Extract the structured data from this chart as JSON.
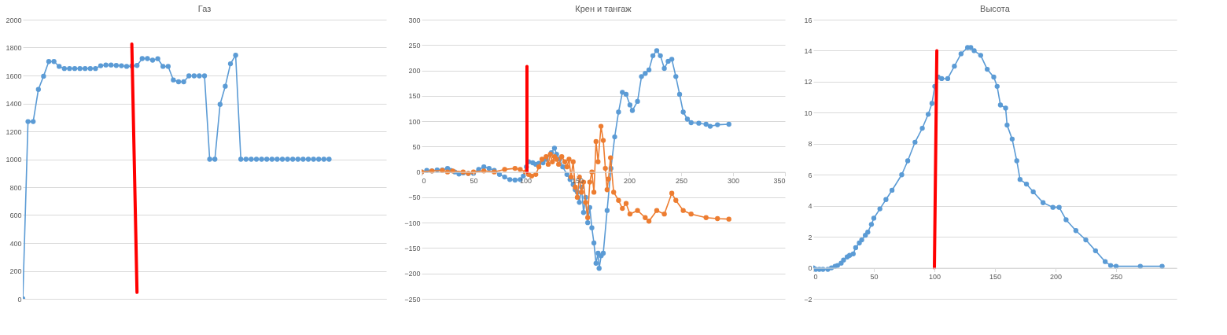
{
  "chart_data": [
    {
      "type": "line",
      "title": "Газ",
      "categories": [
        null,
        null,
        null,
        null,
        null,
        null,
        null,
        null,
        null,
        null,
        null,
        null,
        null,
        null,
        null,
        null,
        null,
        null,
        null,
        null,
        null,
        null,
        null,
        null,
        null,
        null,
        null,
        null,
        null,
        null,
        null,
        null,
        null,
        null,
        null,
        null,
        null,
        null,
        null,
        null,
        null,
        null,
        null,
        null,
        null,
        null,
        null,
        null,
        null,
        null,
        null,
        null,
        null,
        null,
        null,
        null,
        null,
        null,
        null,
        null,
        null,
        null,
        null,
        null,
        null,
        null,
        null,
        null,
        null,
        null,
        null
      ],
      "ylim": [
        0,
        2000
      ],
      "yticks": [
        0,
        200,
        400,
        600,
        800,
        1000,
        1200,
        1400,
        1600,
        1800,
        2000
      ],
      "tick_labels": "y",
      "grid": "y",
      "marker": "circle",
      "series": [
        {
          "color": "#5b9bd5",
          "values": [
            0,
            1270,
            1270,
            1500,
            1595,
            1700,
            1700,
            1665,
            1650,
            1650,
            1650,
            1650,
            1650,
            1650,
            1650,
            1670,
            1675,
            1675,
            1672,
            1670,
            1665,
            1668,
            1672,
            1721,
            1721,
            1710,
            1720,
            1665,
            1665,
            1568,
            1555,
            1555,
            1597,
            1597,
            1597,
            1597,
            1000,
            1000,
            1393,
            1523,
            1684,
            1745,
            1000,
            1000,
            1000,
            1000,
            1000,
            1000,
            1000,
            1000,
            1000,
            1000,
            1000,
            1000,
            1000,
            1000,
            1000,
            1000,
            1000,
            1000,
            null,
            null,
            null,
            null,
            null,
            null,
            null,
            null,
            null,
            null,
            null
          ]
        },
        {
          "color": "#ff0000",
          "marker": "none",
          "values": [
            null,
            null,
            null,
            null,
            null,
            null,
            null,
            null,
            null,
            null,
            null,
            null,
            null,
            null,
            null,
            null,
            null,
            null,
            null,
            null,
            null,
            1826,
            46,
            null,
            null,
            null,
            null,
            null,
            null,
            null,
            null,
            null,
            null,
            null,
            null,
            null,
            null,
            null,
            null,
            null,
            null,
            null,
            null,
            null,
            null,
            null,
            null,
            null,
            null,
            null,
            null,
            null,
            null,
            null,
            null,
            null,
            null,
            null,
            null,
            null,
            null,
            null,
            null,
            null,
            null,
            null,
            null,
            null,
            null,
            null,
            null
          ]
        }
      ]
    },
    {
      "type": "line",
      "title": "Крен и тангаж",
      "xlim": [
        0,
        350
      ],
      "xticks": [
        0,
        50,
        100,
        150,
        200,
        250,
        300,
        350
      ],
      "ylim": [
        -250,
        300
      ],
      "yticks": [
        -250,
        -200,
        -150,
        -100,
        -50,
        0,
        50,
        100,
        150,
        200,
        250,
        300
      ],
      "grid": "y",
      "marker": "circle",
      "series": [
        {
          "color": "#5b9bd5",
          "x": [
            0,
            5,
            10,
            15,
            20,
            25,
            28,
            32,
            36,
            40,
            45,
            50,
            55,
            60,
            65,
            70,
            75,
            80,
            85,
            90,
            95,
            98,
            101,
            103,
            107,
            110,
            113,
            117,
            120,
            125,
            128,
            130,
            133,
            136,
            140,
            143,
            146,
            148,
            150,
            152,
            154,
            156,
            158,
            160,
            162,
            164,
            166,
            168,
            170,
            171,
            173,
            175,
            178.7,
            182.4,
            186,
            189.7,
            193.4,
            197,
            200.7,
            203,
            208,
            211.8,
            215.4,
            219,
            222.8,
            226.5,
            230,
            233.8,
            237.5,
            241,
            244.9,
            248.5,
            252,
            256,
            259.6,
            267,
            274,
            278,
            285,
            296
          ],
          "values": [
            0,
            3,
            2,
            4,
            4,
            7,
            3,
            0,
            -4,
            -2,
            -3,
            -3,
            5,
            10,
            7,
            3,
            -5,
            -10,
            -15,
            -16,
            -15,
            -8,
            10,
            20,
            18,
            15,
            17,
            18,
            25,
            38,
            47,
            35,
            25,
            10,
            -5,
            -15,
            -25,
            -35,
            -40,
            -60,
            -30,
            -80,
            -50,
            -100,
            -70,
            -110,
            -140,
            -180,
            -160,
            -190,
            -165,
            -160,
            -76,
            7,
            69,
            118,
            157,
            153,
            132,
            121,
            139,
            188,
            194,
            201,
            229,
            239,
            229,
            204,
            218,
            222,
            188,
            153,
            118,
            104,
            97,
            96,
            94,
            90,
            93,
            94
          ]
        },
        {
          "color": "#ed7d31",
          "x": [
            0,
            10,
            20,
            25,
            30,
            40,
            45,
            50,
            60,
            70,
            80,
            90,
            95,
            100,
            103,
            106,
            110,
            113,
            116,
            120,
            122,
            124,
            126,
            128,
            130,
            132,
            135,
            138,
            140,
            142,
            144,
            146,
            148,
            150,
            152,
            154,
            156,
            158,
            160,
            162,
            164,
            166,
            168,
            170,
            172.8,
            175,
            177,
            178.7,
            180,
            182,
            185,
            189.7,
            193.4,
            197,
            200.7,
            208,
            215.4,
            219,
            226.5,
            233.8,
            241,
            244.9,
            252,
            259.6,
            274,
            285,
            296
          ],
          "values": [
            0,
            2,
            3,
            0,
            2,
            0,
            -3,
            0,
            2,
            0,
            5,
            7,
            5,
            0,
            -5,
            -8,
            -5,
            10,
            25,
            30,
            15,
            35,
            20,
            30,
            25,
            15,
            30,
            20,
            10,
            25,
            -10,
            20,
            -30,
            -50,
            -10,
            -40,
            -20,
            -60,
            -90,
            -20,
            0,
            -40,
            60,
            20,
            90,
            62,
            7,
            -35,
            -14,
            28,
            -40,
            -56,
            -72,
            -62,
            -83,
            -76,
            -90,
            -97,
            -76,
            -83,
            -42,
            -56,
            -76,
            -83,
            -90,
            -92,
            -93
          ]
        },
        {
          "color": "#ff0000",
          "marker": "none",
          "x": [
            101.5,
            101.5
          ],
          "values": [
            208,
            0
          ]
        }
      ]
    },
    {
      "type": "line",
      "title": "Высота",
      "xlim": [
        0,
        300
      ],
      "xticks": [
        0,
        50,
        100,
        150,
        200,
        250
      ],
      "ylim": [
        -2,
        16
      ],
      "yticks": [
        -2,
        0,
        2,
        4,
        6,
        8,
        10,
        12,
        14,
        16
      ],
      "grid": "y",
      "marker": "circle",
      "series": [
        {
          "color": "#5b9bd5",
          "x": [
            0,
            2,
            5,
            8,
            12,
            15,
            18,
            20,
            23,
            25,
            28,
            30,
            33,
            35,
            38,
            40,
            43,
            45,
            48,
            50,
            55,
            60,
            65,
            73,
            78,
            84,
            90,
            94.9,
            98,
            100.3,
            103,
            106,
            111,
            116.5,
            122,
            127.4,
            130,
            132.8,
            138.2,
            143.6,
            149,
            151.8,
            154.5,
            158.8,
            160,
            164.2,
            168,
            170.7,
            176,
            181.6,
            189.7,
            197.8,
            203,
            208.7,
            216.8,
            225,
            233,
            241,
            245.5,
            250,
            270,
            288
          ],
          "values": [
            0,
            -0.1,
            -0.1,
            -0.1,
            -0.1,
            0,
            0.1,
            0.15,
            0.3,
            0.5,
            0.7,
            0.8,
            0.9,
            1.3,
            1.6,
            1.8,
            2.1,
            2.3,
            2.8,
            3.2,
            3.8,
            4.4,
            5.0,
            6.0,
            6.9,
            8.1,
            9.0,
            9.9,
            10.6,
            11.7,
            12.3,
            12.2,
            12.2,
            13.0,
            13.8,
            14.2,
            14.2,
            14.0,
            13.7,
            12.8,
            12.3,
            11.7,
            10.5,
            10.3,
            9.2,
            8.3,
            6.9,
            5.7,
            5.4,
            4.9,
            4.2,
            3.9,
            3.9,
            3.1,
            2.4,
            1.8,
            1.1,
            0.4,
            0.15,
            0.1,
            0.1,
            0.1
          ]
        },
        {
          "color": "#ff0000",
          "marker": "none",
          "x": [
            102,
            100
          ],
          "values": [
            14,
            0
          ]
        }
      ]
    }
  ]
}
